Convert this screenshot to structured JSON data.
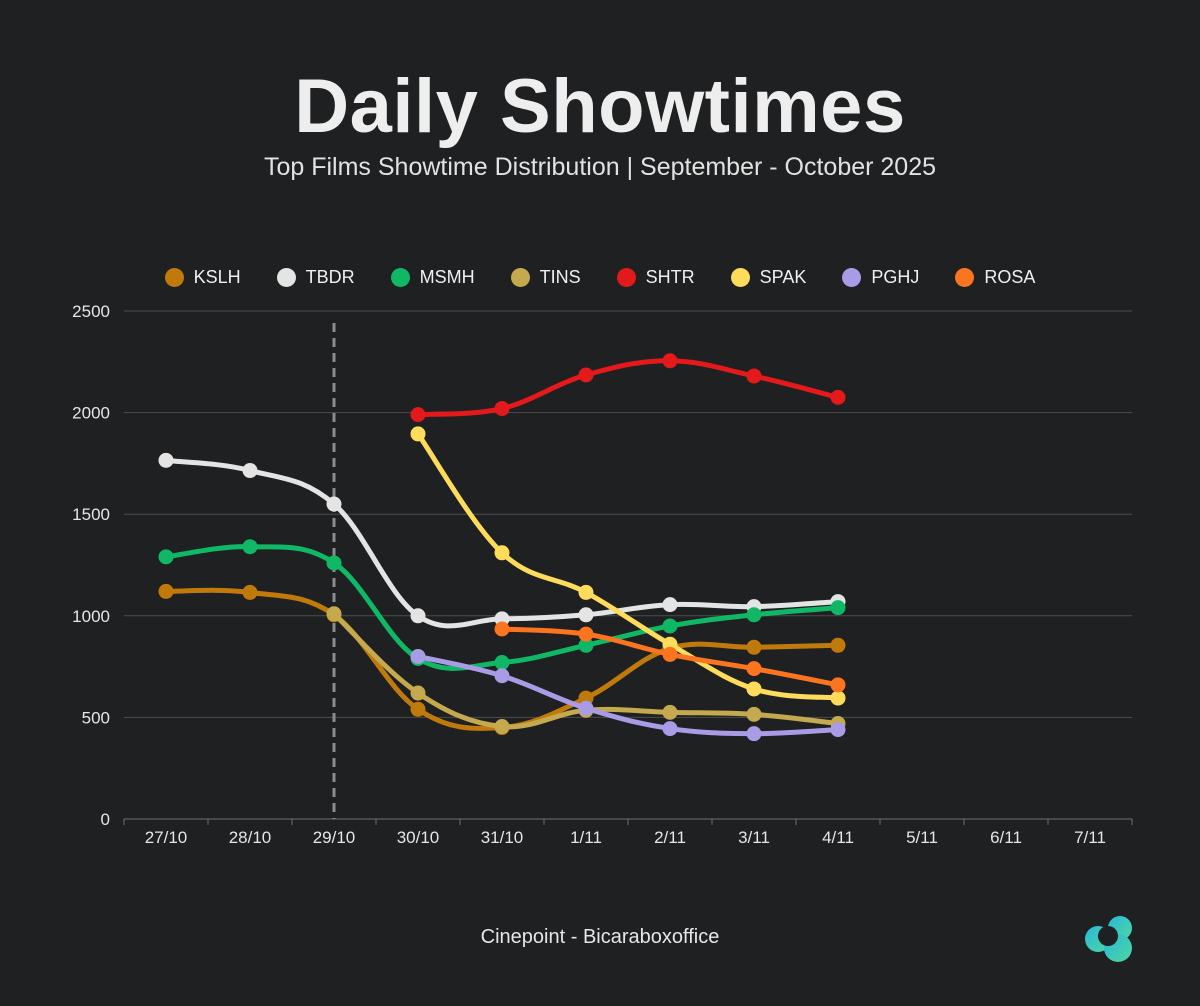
{
  "title": "Daily Showtimes",
  "subtitle": "Top Films Showtime Distribution | September - October 2025",
  "source": "Cinepoint - Bicaraboxoffice",
  "logo_icon": "cloud-logo-icon",
  "chart_data": {
    "type": "line",
    "title": "Daily Showtimes",
    "subtitle": "Top Films Showtime Distribution | September - October 2025",
    "xlabel": "",
    "ylabel": "",
    "categories": [
      "27/10",
      "28/10",
      "29/10",
      "30/10",
      "31/10",
      "1/11",
      "2/11",
      "3/11",
      "4/11",
      "5/11",
      "6/11",
      "7/11"
    ],
    "ylim": [
      0,
      2500
    ],
    "yticks": [
      0,
      500,
      1000,
      1500,
      2000,
      2500
    ],
    "grid": true,
    "legend_position": "top-center",
    "marker_line_category": "29/10",
    "series": [
      {
        "name": "KSLH",
        "color": "#c07a0c",
        "values": [
          1120,
          1115,
          1005,
          540,
          450,
          595,
          840,
          845,
          855,
          null,
          null,
          null
        ]
      },
      {
        "name": "TBDR",
        "color": "#e4e4e4",
        "values": [
          1765,
          1715,
          1550,
          1000,
          985,
          1005,
          1055,
          1045,
          1070,
          null,
          null,
          null
        ]
      },
      {
        "name": "MSMH",
        "color": "#10b866",
        "values": [
          1290,
          1340,
          1260,
          790,
          770,
          855,
          950,
          1005,
          1040,
          null,
          null,
          null
        ]
      },
      {
        "name": "TINS",
        "color": "#c4a94e",
        "values": [
          null,
          null,
          1010,
          620,
          455,
          535,
          525,
          515,
          470,
          null,
          null,
          null
        ]
      },
      {
        "name": "SHTR",
        "color": "#e3191b",
        "values": [
          null,
          null,
          null,
          1990,
          2020,
          2185,
          2255,
          2180,
          2075,
          null,
          null,
          null
        ]
      },
      {
        "name": "SPAK",
        "color": "#fddc5c",
        "values": [
          null,
          null,
          null,
          1895,
          1310,
          1115,
          860,
          640,
          595,
          null,
          null,
          null
        ]
      },
      {
        "name": "PGHJ",
        "color": "#a99be6",
        "values": [
          null,
          null,
          null,
          800,
          705,
          545,
          445,
          420,
          440,
          null,
          null,
          null
        ]
      },
      {
        "name": "ROSA",
        "color": "#fb7420",
        "values": [
          null,
          null,
          null,
          null,
          935,
          910,
          810,
          740,
          660,
          null,
          null,
          null
        ]
      }
    ]
  }
}
